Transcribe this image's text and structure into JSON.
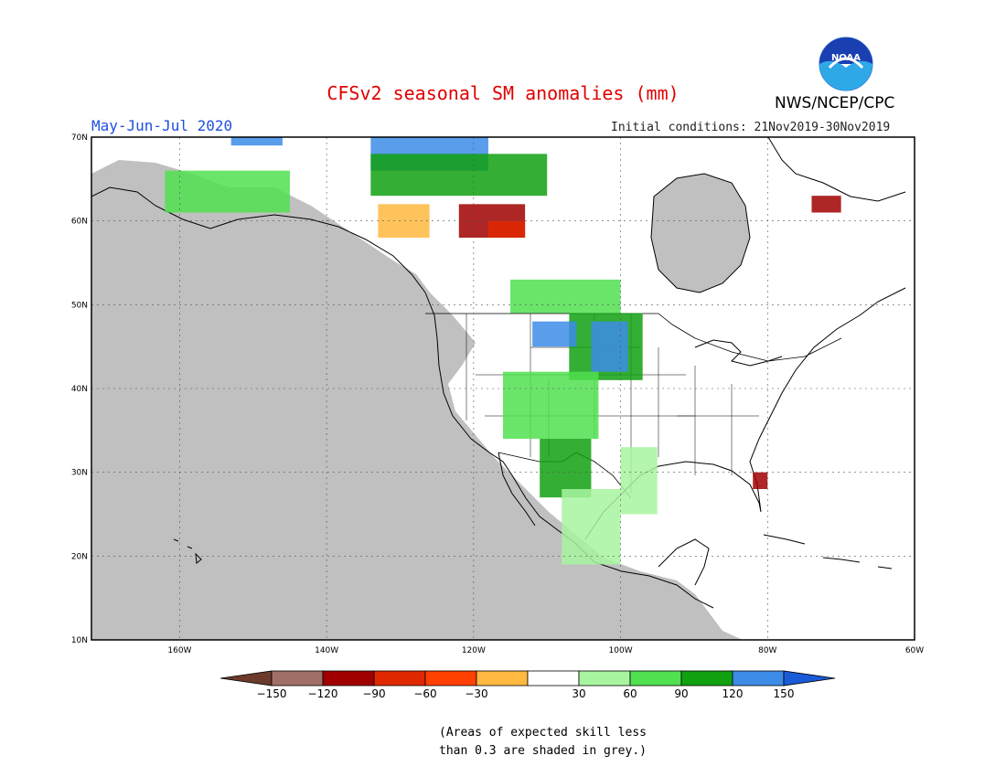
{
  "title": "CFSv2 seasonal SM anomalies (mm)",
  "period": "May-Jun-Jul 2020",
  "initial_conditions": "Initial conditions: 21Nov2019-30Nov2019",
  "agency": "NWS/NCEP/CPC",
  "logo_text": "NOAA",
  "note_line1": "(Areas of expected skill less",
  "note_line2": "than 0.3 are shaded in grey.)",
  "map": {
    "lon_range": [
      -172,
      -60
    ],
    "lat_range": [
      10,
      70
    ],
    "background_color": "#c0c0c0",
    "lat_ticks": [
      {
        "value": 70,
        "label": "70N"
      },
      {
        "value": 60,
        "label": "60N"
      },
      {
        "value": 50,
        "label": "50N"
      },
      {
        "value": 40,
        "label": "40N"
      },
      {
        "value": 30,
        "label": "30N"
      },
      {
        "value": 20,
        "label": "20N"
      },
      {
        "value": 10,
        "label": "10N"
      }
    ],
    "lon_ticks": [
      {
        "value": -160,
        "label": "160W"
      },
      {
        "value": -140,
        "label": "140W"
      },
      {
        "value": -120,
        "label": "120W"
      },
      {
        "value": -100,
        "label": "100W"
      },
      {
        "value": -80,
        "label": "80W"
      },
      {
        "value": -60,
        "label": "60W"
      }
    ]
  },
  "colorbar": {
    "labels": [
      "−150",
      "−120",
      "−90",
      "−60",
      "−30",
      "30",
      "60",
      "90",
      "120",
      "150"
    ],
    "colors": [
      "#6b3a2a",
      "#a07068",
      "#a00000",
      "#e02800",
      "#ff4000",
      "#ffb840",
      "#ffffff",
      "#a8f5a0",
      "#50e050",
      "#10a010",
      "#3c8ce8",
      "#1a5cd8"
    ]
  },
  "regions": [
    {
      "name": "northern-plains-wet",
      "lon": [
        -107,
        -97
      ],
      "lat": [
        41,
        49
      ],
      "color": "#10a010"
    },
    {
      "name": "dakotas-very-wet",
      "lon": [
        -104,
        -99
      ],
      "lat": [
        42,
        48
      ],
      "color": "#3c8ce8"
    },
    {
      "name": "montana-wet",
      "lon": [
        -112,
        -106
      ],
      "lat": [
        45,
        48
      ],
      "color": "#3c8ce8"
    },
    {
      "name": "rockies-moist",
      "lon": [
        -116,
        -103
      ],
      "lat": [
        34,
        42
      ],
      "color": "#50e050"
    },
    {
      "name": "southwest-moist",
      "lon": [
        -111,
        -104
      ],
      "lat": [
        27,
        34
      ],
      "color": "#10a010"
    },
    {
      "name": "mexico-moist",
      "lon": [
        -108,
        -100
      ],
      "lat": [
        19,
        28
      ],
      "color": "#a8f5a0"
    },
    {
      "name": "canada-prairie-moist",
      "lon": [
        -115,
        -100
      ],
      "lat": [
        49,
        53
      ],
      "color": "#50e050"
    },
    {
      "name": "northwest-territories-dry",
      "lon": [
        -122,
        -113
      ],
      "lat": [
        58,
        62
      ],
      "color": "#a00000"
    },
    {
      "name": "alberta-dry",
      "lon": [
        -118,
        -113
      ],
      "lat": [
        58,
        60
      ],
      "color": "#e02800"
    },
    {
      "name": "yukon-dry",
      "lon": [
        -133,
        -126
      ],
      "lat": [
        58,
        62
      ],
      "color": "#ffb840"
    },
    {
      "name": "arctic-wet",
      "lon": [
        -134,
        -118
      ],
      "lat": [
        66,
        70
      ],
      "color": "#3c8ce8"
    },
    {
      "name": "arctic-moist",
      "lon": [
        -134,
        -110
      ],
      "lat": [
        63,
        68
      ],
      "color": "#10a010"
    },
    {
      "name": "alaska-moist",
      "lon": [
        -162,
        -145
      ],
      "lat": [
        61,
        66
      ],
      "color": "#50e050"
    },
    {
      "name": "alaska-north-wet",
      "lon": [
        -153,
        -146
      ],
      "lat": [
        69,
        70
      ],
      "color": "#3c8ce8"
    },
    {
      "name": "southern-plains-moist",
      "lon": [
        -100,
        -95
      ],
      "lat": [
        25,
        33
      ],
      "color": "#a8f5a0"
    },
    {
      "name": "florida-dry",
      "lon": [
        -82,
        -80
      ],
      "lat": [
        28,
        30
      ],
      "color": "#a00000"
    },
    {
      "name": "quebec-dry",
      "lon": [
        -74,
        -70
      ],
      "lat": [
        61,
        63
      ],
      "color": "#a00000"
    }
  ]
}
